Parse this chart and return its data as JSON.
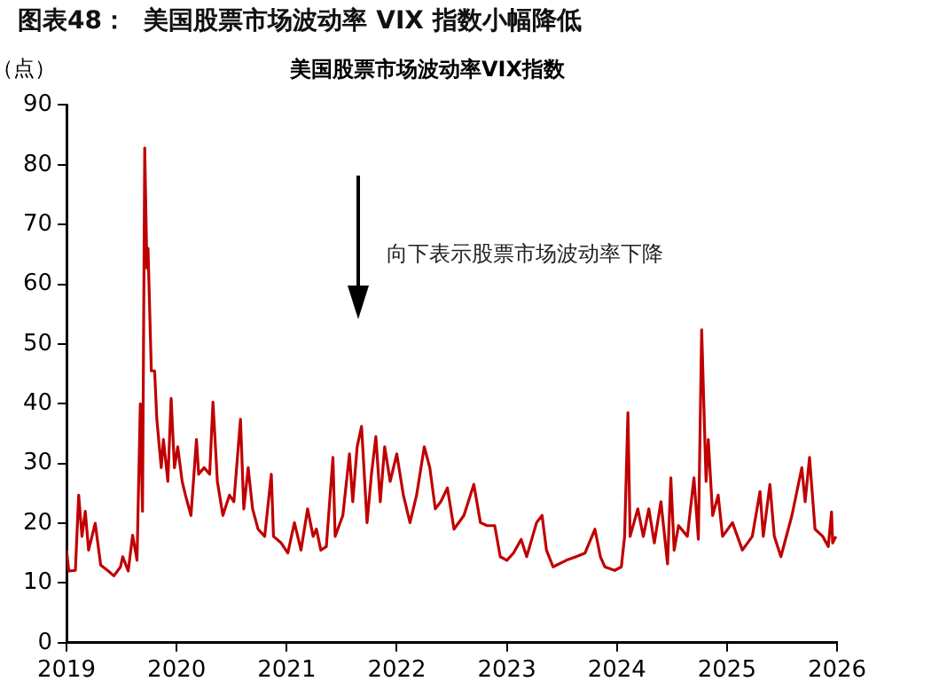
{
  "chart_data": {
    "type": "line",
    "title": "图表48：  美国股票市场波动率 VIX 指数小幅降低",
    "subtitle": "美国股票市场波动率VIX指数",
    "ylabel": "（点）",
    "annotations": [
      "向下表示股票市场波动率下降"
    ],
    "xlim": [
      2019,
      2026
    ],
    "xticks": [
      2019,
      2020,
      2021,
      2022,
      2023,
      2024,
      2025,
      2026
    ],
    "ylim": [
      0,
      90
    ],
    "yticks": [
      0,
      10,
      20,
      30,
      40,
      50,
      60,
      70,
      80,
      90
    ],
    "grid": false,
    "legend": false,
    "marker": "none",
    "line_style": "solid",
    "series": [
      {
        "color": "#c00000",
        "x": [
          2019.0,
          2019.02,
          2019.08,
          2019.11,
          2019.14,
          2019.17,
          2019.2,
          2019.26,
          2019.31,
          2019.38,
          2019.43,
          2019.49,
          2019.51,
          2019.56,
          2019.6,
          2019.64,
          2019.67,
          2019.69,
          2019.71,
          2019.73,
          2019.74,
          2019.77,
          2019.8,
          2019.82,
          2019.86,
          2019.88,
          2019.92,
          2019.95,
          2019.98,
          2020.01,
          2020.05,
          2020.08,
          2020.13,
          2020.18,
          2020.2,
          2020.25,
          2020.3,
          2020.33,
          2020.37,
          2020.42,
          2020.48,
          2020.52,
          2020.58,
          2020.61,
          2020.65,
          2020.69,
          2020.74,
          2020.8,
          2020.86,
          2020.88,
          2020.95,
          2021.01,
          2021.07,
          2021.13,
          2021.19,
          2021.24,
          2021.27,
          2021.31,
          2021.36,
          2021.42,
          2021.44,
          2021.51,
          2021.57,
          2021.6,
          2021.64,
          2021.68,
          2021.73,
          2021.77,
          2021.81,
          2021.85,
          2021.89,
          2021.94,
          2022.0,
          2022.06,
          2022.12,
          2022.18,
          2022.25,
          2022.3,
          2022.35,
          2022.4,
          2022.46,
          2022.52,
          2022.61,
          2022.7,
          2022.76,
          2022.82,
          2022.89,
          2022.94,
          2023.0,
          2023.06,
          2023.13,
          2023.18,
          2023.27,
          2023.32,
          2023.36,
          2023.42,
          2023.54,
          2023.63,
          2023.71,
          2023.8,
          2023.85,
          2023.89,
          2023.98,
          2024.04,
          2024.07,
          2024.1,
          2024.12,
          2024.19,
          2024.24,
          2024.29,
          2024.34,
          2024.4,
          2024.46,
          2024.49,
          2024.52,
          2024.56,
          2024.64,
          2024.7,
          2024.74,
          2024.77,
          2024.81,
          2024.83,
          2024.87,
          2024.92,
          2024.96,
          2025.05,
          2025.14,
          2025.23,
          2025.3,
          2025.33,
          2025.39,
          2025.43,
          2025.49,
          2025.59,
          2025.68,
          2025.71,
          2025.75,
          2025.8,
          2025.87,
          2025.92,
          2025.95,
          2025.96,
          2025.99
        ],
        "values": [
          15.5,
          12,
          12.1,
          24.7,
          17.8,
          22,
          15.5,
          20,
          13,
          12,
          11.2,
          12.7,
          14.4,
          12,
          18,
          13.8,
          40,
          22,
          82.8,
          62.7,
          66,
          45.5,
          45.5,
          37.4,
          29.3,
          34,
          27,
          40.9,
          29.3,
          32.8,
          27,
          24.7,
          21.3,
          34,
          28.2,
          29.3,
          28.2,
          40.3,
          27,
          21.3,
          24.7,
          23.6,
          37.4,
          22.4,
          29.3,
          22.4,
          19,
          17.8,
          28.2,
          17.8,
          16.7,
          15,
          20.1,
          15.5,
          22.4,
          17.8,
          19,
          15.5,
          16.1,
          31,
          17.8,
          21.3,
          31.6,
          23.6,
          32.8,
          36.2,
          20.1,
          28.2,
          34.5,
          23.6,
          32.8,
          27,
          31.6,
          24.7,
          20.1,
          24.7,
          32.8,
          29.3,
          22.4,
          23.6,
          25.9,
          19,
          21.3,
          26.5,
          20.1,
          19.6,
          19.6,
          14.4,
          13.8,
          15,
          17.3,
          14.4,
          20.1,
          21.3,
          15.5,
          12.7,
          13.8,
          14.4,
          15,
          19,
          14.4,
          12.7,
          12.1,
          12.7,
          17.8,
          38.5,
          17.8,
          22.4,
          17.8,
          22.4,
          16.7,
          23.6,
          13.2,
          27.6,
          15.5,
          19.6,
          17.8,
          27.6,
          17.3,
          52.4,
          27,
          34,
          21.3,
          24.7,
          17.8,
          20.1,
          15.5,
          17.8,
          25.3,
          17.8,
          26.5,
          17.8,
          14.4,
          21.3,
          29.3,
          23.6,
          31,
          19,
          17.8,
          16.1,
          21.9,
          16.7,
          17.8
        ]
      }
    ]
  }
}
